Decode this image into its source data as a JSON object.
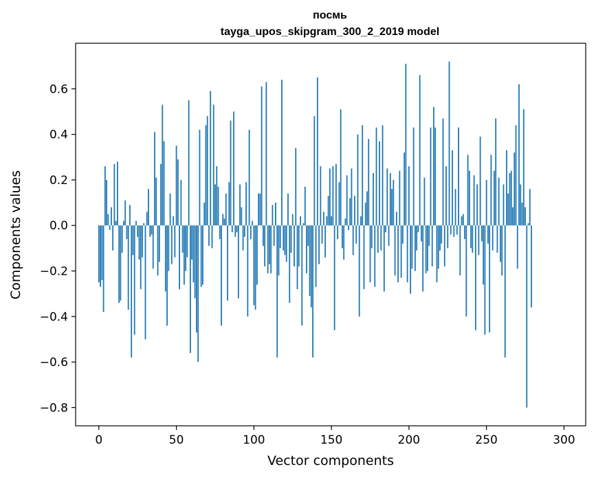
{
  "chart_data": {
    "type": "bar",
    "title_line1": "посмь",
    "title_line2": "tayga_upos_skipgram_300_2_2019 model",
    "xlabel": "Vector components",
    "ylabel": "Components values",
    "xlim": [
      -15,
      314
    ],
    "ylim": [
      -0.88,
      0.8
    ],
    "xticks": [
      0,
      50,
      100,
      150,
      200,
      250,
      300
    ],
    "xtick_labels": [
      "0",
      "50",
      "100",
      "150",
      "200",
      "250",
      "300"
    ],
    "yticks": [
      -0.8,
      -0.6,
      -0.4,
      -0.2,
      0.0,
      0.2,
      0.4,
      0.6
    ],
    "ytick_labels": [
      "−0.8",
      "−0.6",
      "−0.4",
      "−0.2",
      "0.0",
      "0.2",
      "0.4",
      "0.6"
    ],
    "bar_color": "#1f77b4",
    "grid": false,
    "values": [
      -0.25,
      -0.27,
      -0.24,
      -0.38,
      0.26,
      0.2,
      0.05,
      -0.02,
      0.08,
      -0.11,
      0.27,
      0.02,
      0.28,
      -0.34,
      -0.33,
      -0.12,
      0.02,
      0.11,
      -0.06,
      -0.37,
      0.09,
      -0.58,
      -0.13,
      -0.48,
      0.02,
      -0.05,
      -0.15,
      -0.28,
      -0.14,
      0.01,
      -0.5,
      0.06,
      0.16,
      -0.05,
      -0.04,
      -0.19,
      0.41,
      0.21,
      -0.22,
      -0.16,
      0.27,
      0.53,
      0.37,
      -0.29,
      -0.44,
      -0.2,
      0.14,
      -0.17,
      0.04,
      -0.14,
      0.35,
      0.29,
      -0.28,
      0.2,
      -0.12,
      -0.26,
      -0.2,
      -0.14,
      0.55,
      -0.56,
      -0.15,
      -0.25,
      -0.32,
      -0.47,
      -0.6,
      0.42,
      -0.27,
      -0.26,
      0.1,
      0.44,
      0.48,
      -0.09,
      0.59,
      -0.1,
      0.53,
      0.18,
      0.26,
      0.17,
      -0.06,
      -0.44,
      0.05,
      0.03,
      0.14,
      -0.33,
      0.19,
      0.46,
      -0.03,
      0.5,
      -0.05,
      -0.03,
      -0.32,
      0.18,
      0.08,
      -0.11,
      -0.05,
      0.19,
      -0.4,
      0.42,
      -0.06,
      0.02,
      -0.35,
      -0.37,
      -0.26,
      0.14,
      0.14,
      0.61,
      -0.09,
      -0.18,
      0.63,
      -0.21,
      -0.17,
      -0.21,
      0.09,
      -0.09,
      0.1,
      -0.58,
      -0.22,
      -0.1,
      0.64,
      -0.11,
      -0.13,
      -0.16,
      0.14,
      -0.34,
      -0.12,
      0.05,
      -0.18,
      0.34,
      -0.28,
      -0.18,
      0.04,
      -0.44,
      0.01,
      0.17,
      -0.21,
      -0.09,
      -0.31,
      -0.36,
      -0.58,
      0.48,
      -0.27,
      0.65,
      -0.17,
      0.26,
      -0.08,
      0.06,
      -0.14,
      0.04,
      0.13,
      0.25,
      0.04,
      0.26,
      -0.46,
      0.27,
      -0.06,
      0.19,
      0.51,
      -0.1,
      -0.15,
      0.03,
      0.22,
      -0.02,
      0.12,
      0.25,
      -0.13,
      0.13,
      -0.08,
      0.4,
      -0.4,
      0.04,
      0.44,
      -0.28,
      0.1,
      0.15,
      0.38,
      -0.25,
      -0.1,
      0.23,
      -0.27,
      0.43,
      -0.12,
      0.37,
      -0.11,
      0.44,
      -0.29,
      -0.03,
      0.25,
      -0.09,
      0.23,
      0.16,
      0.2,
      -0.22,
      0.06,
      -0.25,
      0.24,
      -0.23,
      -0.08,
      0.32,
      0.71,
      -0.25,
      0.26,
      -0.3,
      -0.19,
      0.43,
      -0.2,
      -0.11,
      -0.03,
      0.66,
      -0.07,
      -0.29,
      0.21,
      -0.21,
      -0.2,
      -0.09,
      0.43,
      -0.18,
      0.52,
      0.43,
      -0.25,
      -0.19,
      -0.11,
      -0.08,
      0.47,
      -0.18,
      0.26,
      -0.1,
      0.72,
      -0.04,
      0.33,
      -0.05,
      0.16,
      -0.04,
      0.43,
      -0.22,
      0.04,
      0.05,
      -0.06,
      -0.4,
      0.31,
      0.24,
      -0.1,
      -0.12,
      0.22,
      -0.46,
      0.18,
      -0.13,
      0.39,
      -0.07,
      -0.26,
      -0.48,
      0.2,
      -0.08,
      -0.47,
      0.31,
      -0.11,
      0.24,
      0.47,
      -0.12,
      0.21,
      -0.16,
      -0.22,
      0.18,
      -0.58,
      0.33,
      0.14,
      0.23,
      0.24,
      0.08,
      0.32,
      0.44,
      -0.19,
      0.62,
      0.18,
      0.1,
      0.51,
      0.08,
      -0.8,
      0.01,
      0.16,
      -0.36
    ]
  }
}
